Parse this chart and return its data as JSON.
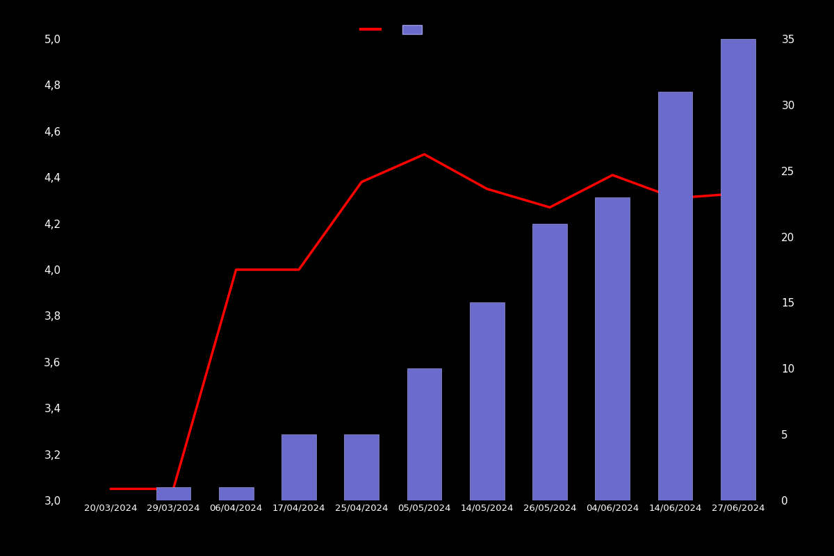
{
  "dates": [
    "20/03/2024",
    "29/03/2024",
    "06/04/2024",
    "17/04/2024",
    "25/04/2024",
    "05/05/2024",
    "14/05/2024",
    "26/05/2024",
    "04/06/2024",
    "14/06/2024",
    "27/06/2024"
  ],
  "bar_values": [
    0,
    1,
    1,
    5,
    5,
    10,
    15,
    21,
    23,
    31,
    35
  ],
  "line_points_y": [
    3.05,
    3.05,
    4.0,
    4.0,
    4.38,
    4.5,
    4.35,
    4.27,
    4.41,
    4.31,
    4.33
  ],
  "bar_color": "#6b6bcc",
  "bar_edge_color": "#9999dd",
  "line_color": "#ff0000",
  "background_color": "#000000",
  "text_color": "#ffffff",
  "ylim_left": [
    3.0,
    5.0
  ],
  "ylim_right": [
    0,
    35
  ],
  "yticks_left": [
    3.0,
    3.2,
    3.4,
    3.6,
    3.8,
    4.0,
    4.2,
    4.4,
    4.6,
    4.8,
    5.0
  ],
  "yticks_right": [
    0,
    5,
    10,
    15,
    20,
    25,
    30,
    35
  ],
  "line_width": 2.5,
  "bar_width": 0.55
}
